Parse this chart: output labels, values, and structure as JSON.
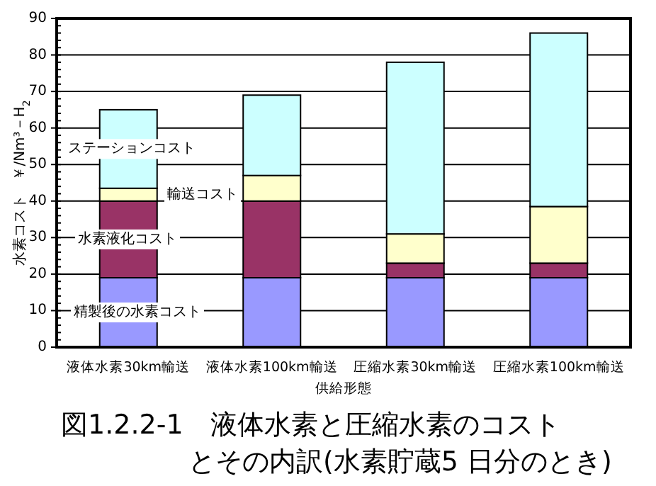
{
  "chart_data": {
    "type": "bar",
    "stacked": true,
    "title": "図1.2.2-1　液体水素と圧縮水素のコスト",
    "subtitle": "とその内訳(水素貯蔵5 日分のとき)",
    "xlabel": "供給形態",
    "ylabel": "水素コスト　￥/Nm³－H$_{2}$",
    "categories": [
      "液体水素30km輸送",
      "液体水素100km輸送",
      "圧縮水素30km輸送",
      "圧縮水素100km輸送"
    ],
    "series": [
      {
        "name": "精製後の水素コスト",
        "color": "#9999ff",
        "values": [
          19,
          19,
          19,
          19
        ]
      },
      {
        "name": "水素液化コスト",
        "color": "#993366",
        "values": [
          21,
          21,
          4,
          4
        ]
      },
      {
        "name": "輸送コスト",
        "color": "#ffffcc",
        "values": [
          3.5,
          7,
          8,
          15.5
        ]
      },
      {
        "name": "ステーションコスト",
        "color": "#ccffff",
        "values": [
          21.5,
          22,
          47,
          47.5
        ]
      }
    ],
    "ylim": [
      0,
      90
    ],
    "yticks": [
      0,
      10,
      20,
      30,
      40,
      50,
      60,
      70,
      80,
      90
    ],
    "grid": "y",
    "legend": false
  }
}
